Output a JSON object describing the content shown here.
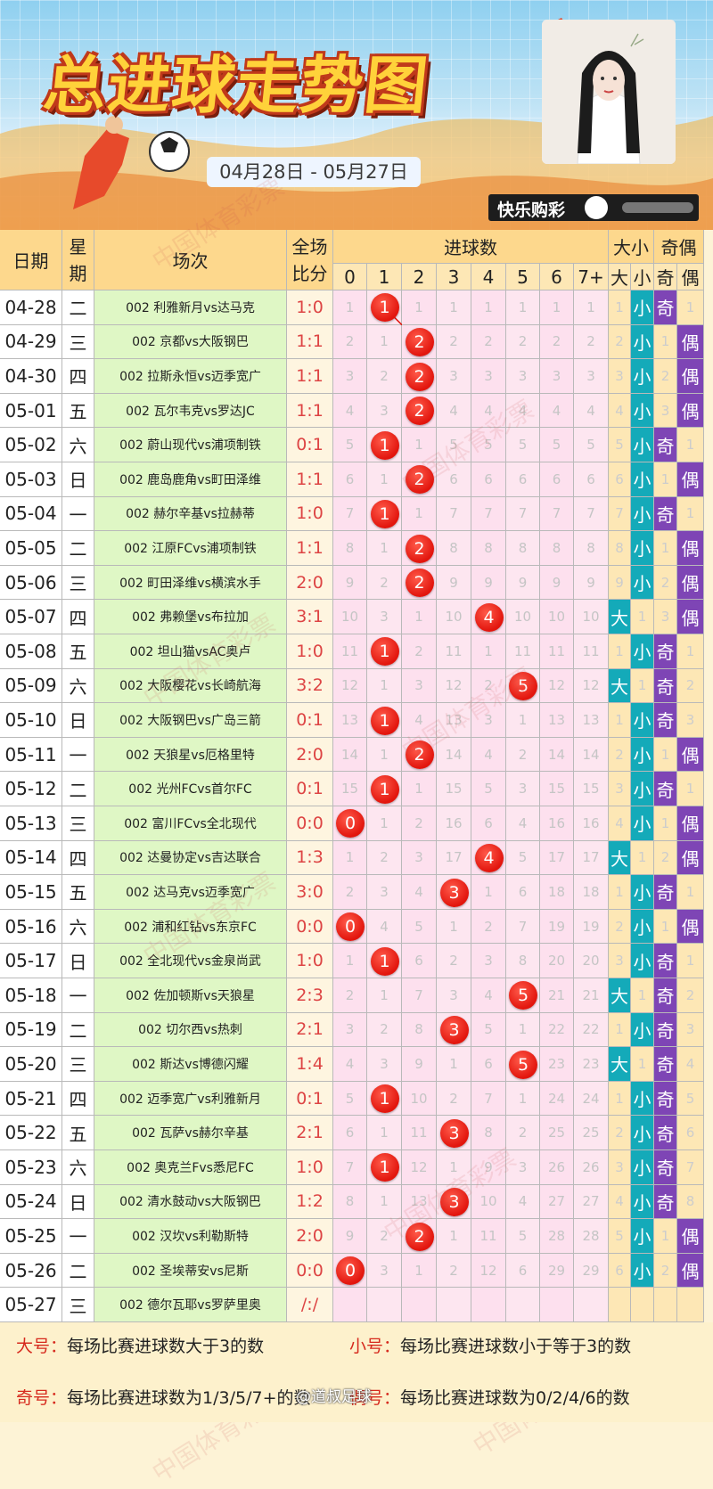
{
  "header": {
    "title": "总进球走势图",
    "date_range": "04月28日 - 05月27日",
    "brand": "快乐购彩",
    "watermark": "中国体育彩票"
  },
  "table": {
    "headers": {
      "date": "日期",
      "weekday": "星期",
      "match": "场次",
      "score": "全场比分",
      "goals": "进球数",
      "bigsmall": "大小",
      "oddeven": "奇偶"
    },
    "goal_columns": [
      "0",
      "1",
      "2",
      "3",
      "4",
      "5",
      "6",
      "7+"
    ],
    "bigsmall_columns": [
      "大",
      "小"
    ],
    "oddeven_columns": [
      "奇",
      "偶"
    ],
    "rows": [
      {
        "date": "04-28",
        "weekday": "二",
        "match": "002 利雅新月vs达马克",
        "score": "1:0",
        "goals": 1,
        "miss": [
          1,
          "",
          1,
          1,
          1,
          1,
          1,
          1
        ],
        "big": "1",
        "odd": "奇",
        "even": "1"
      },
      {
        "date": "04-29",
        "weekday": "三",
        "match": "002 京都vs大阪钢巴",
        "score": "1:1",
        "goals": 2,
        "miss": [
          2,
          1,
          "",
          2,
          2,
          2,
          2,
          2
        ],
        "big": "2",
        "odd": "1",
        "even": "偶"
      },
      {
        "date": "04-30",
        "weekday": "四",
        "match": "002 拉斯永恒vs迈季宽广",
        "score": "1:1",
        "goals": 2,
        "miss": [
          3,
          2,
          "",
          3,
          3,
          3,
          3,
          3
        ],
        "big": "3",
        "odd": "2",
        "even": "偶"
      },
      {
        "date": "05-01",
        "weekday": "五",
        "match": "002 瓦尔韦克vs罗达JC",
        "score": "1:1",
        "goals": 2,
        "miss": [
          4,
          3,
          "",
          4,
          4,
          4,
          4,
          4
        ],
        "big": "4",
        "odd": "3",
        "even": "偶"
      },
      {
        "date": "05-02",
        "weekday": "六",
        "match": "002 蔚山现代vs浦项制铁",
        "score": "0:1",
        "goals": 1,
        "miss": [
          5,
          "",
          1,
          5,
          5,
          5,
          5,
          5
        ],
        "big": "5",
        "odd": "奇",
        "even": "1"
      },
      {
        "date": "05-03",
        "weekday": "日",
        "match": "002 鹿岛鹿角vs町田泽维",
        "score": "1:1",
        "goals": 2,
        "miss": [
          6,
          1,
          "",
          6,
          6,
          6,
          6,
          6
        ],
        "big": "6",
        "odd": "1",
        "even": "偶"
      },
      {
        "date": "05-04",
        "weekday": "一",
        "match": "002 赫尔辛基vs拉赫蒂",
        "score": "1:0",
        "goals": 1,
        "miss": [
          7,
          "",
          1,
          7,
          7,
          7,
          7,
          7
        ],
        "big": "7",
        "odd": "奇",
        "even": "1"
      },
      {
        "date": "05-05",
        "weekday": "二",
        "match": "002 江原FCvs浦项制铁",
        "score": "1:1",
        "goals": 2,
        "miss": [
          8,
          1,
          "",
          8,
          8,
          8,
          8,
          8
        ],
        "big": "8",
        "odd": "1",
        "even": "偶"
      },
      {
        "date": "05-06",
        "weekday": "三",
        "match": "002 町田泽维vs横滨水手",
        "score": "2:0",
        "goals": 2,
        "miss": [
          9,
          2,
          "",
          9,
          9,
          9,
          9,
          9
        ],
        "big": "9",
        "odd": "2",
        "even": "偶"
      },
      {
        "date": "05-07",
        "weekday": "四",
        "match": "002 弗赖堡vs布拉加",
        "score": "3:1",
        "goals": 4,
        "miss": [
          10,
          3,
          1,
          10,
          "",
          10,
          10,
          10
        ],
        "big": "大",
        "small": "1",
        "odd": "3",
        "even": "偶"
      },
      {
        "date": "05-08",
        "weekday": "五",
        "match": "002 坦山猫vsAC奥卢",
        "score": "1:0",
        "goals": 1,
        "miss": [
          11,
          "",
          2,
          11,
          1,
          11,
          11,
          11
        ],
        "big": "1",
        "odd": "奇",
        "even": "1"
      },
      {
        "date": "05-09",
        "weekday": "六",
        "match": "002 大阪樱花vs长崎航海",
        "score": "3:2",
        "goals": 5,
        "miss": [
          12,
          1,
          3,
          12,
          2,
          "",
          12,
          12
        ],
        "big": "大",
        "small": "1",
        "odd": "奇",
        "even": "2"
      },
      {
        "date": "05-10",
        "weekday": "日",
        "match": "002 大阪钢巴vs广岛三箭",
        "score": "0:1",
        "goals": 1,
        "miss": [
          13,
          "",
          4,
          13,
          3,
          1,
          13,
          13
        ],
        "big": "1",
        "odd": "奇",
        "even": "3"
      },
      {
        "date": "05-11",
        "weekday": "一",
        "match": "002 天狼星vs厄格里特",
        "score": "2:0",
        "goals": 2,
        "miss": [
          14,
          1,
          "",
          14,
          4,
          2,
          14,
          14
        ],
        "big": "2",
        "odd": "1",
        "even": "偶"
      },
      {
        "date": "05-12",
        "weekday": "二",
        "match": "002 光州FCvs首尔FC",
        "score": "0:1",
        "goals": 1,
        "miss": [
          15,
          "",
          1,
          15,
          5,
          3,
          15,
          15
        ],
        "big": "3",
        "odd": "奇",
        "even": "1"
      },
      {
        "date": "05-13",
        "weekday": "三",
        "match": "002 富川FCvs全北现代",
        "score": "0:0",
        "goals": 0,
        "miss": [
          "",
          1,
          2,
          16,
          6,
          4,
          16,
          16
        ],
        "big": "4",
        "odd": "1",
        "even": "偶"
      },
      {
        "date": "05-14",
        "weekday": "四",
        "match": "002 达曼协定vs吉达联合",
        "score": "1:3",
        "goals": 4,
        "miss": [
          1,
          2,
          3,
          17,
          "",
          5,
          17,
          17
        ],
        "big": "大",
        "small": "1",
        "odd": "2",
        "even": "偶"
      },
      {
        "date": "05-15",
        "weekday": "五",
        "match": "002 达马克vs迈季宽广",
        "score": "3:0",
        "goals": 3,
        "miss": [
          2,
          3,
          4,
          "",
          1,
          6,
          18,
          18
        ],
        "big": "1",
        "odd": "奇",
        "even": "1"
      },
      {
        "date": "05-16",
        "weekday": "六",
        "match": "002 浦和红钻vs东京FC",
        "score": "0:0",
        "goals": 0,
        "miss": [
          "",
          4,
          5,
          1,
          2,
          7,
          19,
          19
        ],
        "big": "2",
        "odd": "1",
        "even": "偶"
      },
      {
        "date": "05-17",
        "weekday": "日",
        "match": "002 全北现代vs金泉尚武",
        "score": "1:0",
        "goals": 1,
        "miss": [
          1,
          "",
          6,
          2,
          3,
          8,
          20,
          20
        ],
        "big": "3",
        "odd": "奇",
        "even": "1"
      },
      {
        "date": "05-18",
        "weekday": "一",
        "match": "002 佐加顿斯vs天狼星",
        "score": "2:3",
        "goals": 5,
        "miss": [
          2,
          1,
          7,
          3,
          4,
          "",
          21,
          21
        ],
        "big": "大",
        "small": "1",
        "odd": "奇",
        "even": "2"
      },
      {
        "date": "05-19",
        "weekday": "二",
        "match": "002 切尔西vs热刺",
        "score": "2:1",
        "goals": 3,
        "miss": [
          3,
          2,
          8,
          "",
          5,
          1,
          22,
          22
        ],
        "big": "1",
        "odd": "奇",
        "even": "3"
      },
      {
        "date": "05-20",
        "weekday": "三",
        "match": "002 斯达vs博德闪耀",
        "score": "1:4",
        "goals": 5,
        "miss": [
          4,
          3,
          9,
          1,
          6,
          "",
          23,
          23
        ],
        "big": "大",
        "small": "1",
        "odd": "奇",
        "even": "4"
      },
      {
        "date": "05-21",
        "weekday": "四",
        "match": "002 迈季宽广vs利雅新月",
        "score": "0:1",
        "goals": 1,
        "miss": [
          5,
          "",
          10,
          2,
          7,
          1,
          24,
          24
        ],
        "big": "1",
        "odd": "奇",
        "even": "5"
      },
      {
        "date": "05-22",
        "weekday": "五",
        "match": "002 瓦萨vs赫尔辛基",
        "score": "2:1",
        "goals": 3,
        "miss": [
          6,
          1,
          11,
          "",
          8,
          2,
          25,
          25
        ],
        "big": "2",
        "odd": "奇",
        "even": "6"
      },
      {
        "date": "05-23",
        "weekday": "六",
        "match": "002 奥克兰Fvs悉尼FC",
        "score": "1:0",
        "goals": 1,
        "miss": [
          7,
          "",
          12,
          1,
          9,
          3,
          26,
          26
        ],
        "big": "3",
        "odd": "奇",
        "even": "7"
      },
      {
        "date": "05-24",
        "weekday": "日",
        "match": "002 清水鼓动vs大阪钢巴",
        "score": "1:2",
        "goals": 3,
        "miss": [
          8,
          1,
          13,
          "",
          10,
          4,
          27,
          27
        ],
        "big": "4",
        "odd": "奇",
        "even": "8"
      },
      {
        "date": "05-25",
        "weekday": "一",
        "match": "002 汉坎vs利勒斯特",
        "score": "2:0",
        "goals": 2,
        "miss": [
          9,
          2,
          "",
          1,
          11,
          5,
          28,
          28
        ],
        "big": "5",
        "odd": "1",
        "even": "偶"
      },
      {
        "date": "05-26",
        "weekday": "二",
        "match": "002 圣埃蒂安vs尼斯",
        "score": "0:0",
        "goals": 0,
        "miss": [
          "",
          3,
          1,
          2,
          12,
          6,
          29,
          29
        ],
        "big": "6",
        "odd": "2",
        "even": "偶"
      },
      {
        "date": "05-27",
        "weekday": "三",
        "match": "002 德尔瓦耶vs罗萨里奥",
        "score": "/:/",
        "goals": null,
        "miss": [
          "",
          "",
          "",
          "",
          "",
          "",
          "",
          ""
        ],
        "big": "",
        "odd": "",
        "even": ""
      }
    ]
  },
  "legend": {
    "big_label": "大号：",
    "big_text": "每场比赛进球数大于3的数",
    "small_label": "小号：",
    "small_text": "每场比赛进球数小于等于3的数",
    "odd_label": "奇号：",
    "odd_text": "每场比赛进球数为1/3/5/7+的数",
    "even_label": "偶号：",
    "even_text": "每场比赛进球数为0/2/4/6的数"
  },
  "footer": {
    "weibo": "@道叔足球"
  },
  "colors": {
    "ball": "#e2150d",
    "teal": "#14aab9",
    "purple": "#7e45b5",
    "header": "#fdd88d",
    "match_bg": "#dff7c5"
  }
}
